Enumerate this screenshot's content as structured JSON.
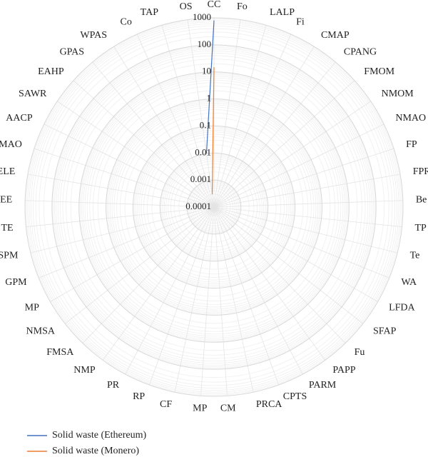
{
  "chart_data": {
    "type": "radar",
    "categories": [
      "CC",
      "Fo",
      "LALP",
      "Fi",
      "CMAP",
      "CPANG",
      "FMOM",
      "NMOM",
      "NMAO",
      "FP",
      "FPR",
      "Be",
      "TP",
      "Te",
      "WA",
      "LFDA",
      "SFAP",
      "Fu",
      "PAPP",
      "PARM",
      "CPTS",
      "PRCA",
      "CM",
      "MP",
      "CF",
      "RP",
      "PR",
      "NMP",
      "FMSA",
      "NMSA",
      "MP",
      "GPM",
      "SPM",
      "TE",
      "EE",
      "ELE",
      "IMAO",
      "AACP",
      "SAWR",
      "EAHP",
      "GPAS",
      "WPAS",
      "Co",
      "TAP",
      "OS"
    ],
    "series": [
      {
        "name": "Solid waste (Ethereum)",
        "color": "#4472c4",
        "values": [
          800,
          null,
          null,
          null,
          null,
          null,
          null,
          null,
          null,
          null,
          null,
          null,
          null,
          null,
          null,
          null,
          null,
          null,
          null,
          null,
          null,
          null,
          null,
          null,
          null,
          null,
          null,
          null,
          null,
          null,
          null,
          null,
          null,
          null,
          null,
          null,
          null,
          null,
          null,
          null,
          null,
          null,
          null,
          null,
          0.01
        ]
      },
      {
        "name": "Solid waste (Monero)",
        "color": "#ed7d31",
        "values": [
          15,
          null,
          null,
          null,
          null,
          null,
          null,
          null,
          null,
          null,
          null,
          null,
          null,
          null,
          null,
          null,
          null,
          null,
          null,
          null,
          null,
          null,
          null,
          null,
          null,
          null,
          null,
          null,
          null,
          null,
          null,
          null,
          null,
          null,
          null,
          null,
          null,
          null,
          null,
          null,
          null,
          null,
          null,
          null,
          0.0003
        ]
      }
    ],
    "rlim": [
      0.0001,
      1000
    ],
    "rticks": [
      0.0001,
      0.001,
      0.01,
      0.1,
      1,
      10,
      100,
      1000
    ],
    "log_scale": true,
    "grid": true,
    "legend": "bottom-left"
  }
}
